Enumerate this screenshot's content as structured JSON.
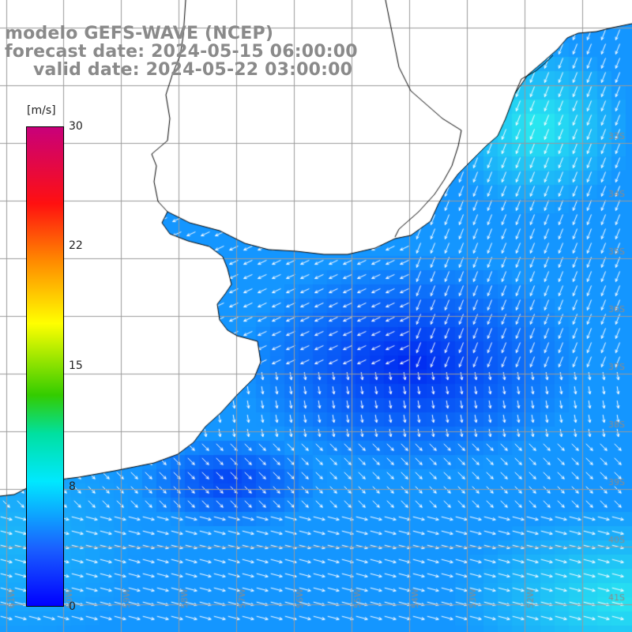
{
  "header": {
    "line1": "modelo GEFS-WAVE (NCEP)",
    "line2": "forecast date: 2024-05-15 06:00:00",
    "line3": "valid date: 2024-05-22 03:00:00"
  },
  "colorbar": {
    "unit": "[m/s]",
    "ticks": [
      {
        "label": "30",
        "value": 30
      },
      {
        "label": "22",
        "value": 22
      },
      {
        "label": "15",
        "value": 15
      },
      {
        "label": "8",
        "value": 8
      },
      {
        "label": "0",
        "value": 0
      }
    ],
    "colors": [
      "#c8007a",
      "#ff1010",
      "#ff8a00",
      "#ffff00",
      "#33cc00",
      "#00e0a0",
      "#00e8ff",
      "#1a60ff",
      "#0000ff"
    ]
  },
  "map": {
    "land_color": "#ffffff",
    "grid_color": "#9a9a9a",
    "coast_color": "#000000",
    "arrow_color": "#ffffff",
    "lat_labels": [
      "33S",
      "34S",
      "35S",
      "36S",
      "37S",
      "38S",
      "39S",
      "40S",
      "41S"
    ],
    "lon_labels": [
      "61W",
      "60W",
      "59W",
      "58W",
      "57W",
      "56W",
      "55W",
      "54W",
      "53W",
      "52W"
    ]
  }
}
